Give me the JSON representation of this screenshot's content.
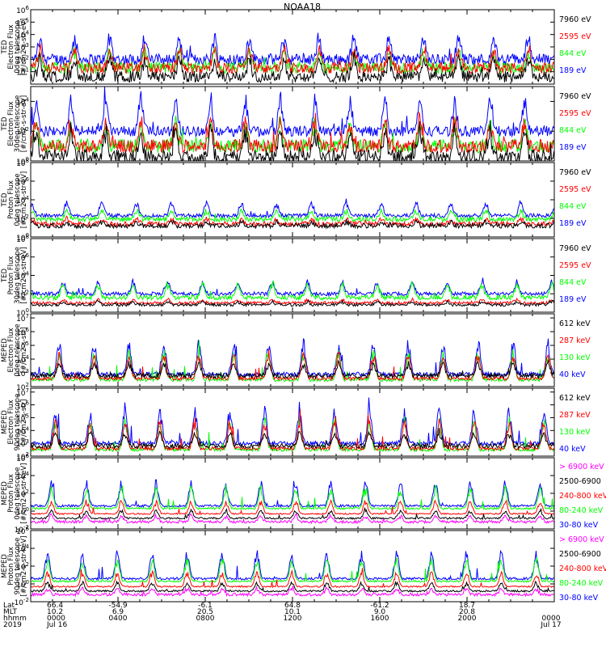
{
  "title": "NOAA18",
  "colors": {
    "black": "#000000",
    "red": "#ff0000",
    "green": "#00ff00",
    "blue": "#0000ff",
    "magenta": "#ff00ff"
  },
  "chart_data": [
    {
      "type": "line",
      "ylabel": [
        "TED",
        "Electron Flux",
        "0deg telescope",
        "[#/cm2-s-str-eV]"
      ],
      "yscale": "log",
      "ylim_exp": [
        0,
        6
      ],
      "ytick_labels": [
        "10^1",
        "10^2",
        "10^3",
        "10^4",
        "10^5",
        "10^6"
      ],
      "legend": [
        {
          "name": "7960 eV",
          "color": "#000000"
        },
        {
          "name": "2595 eV",
          "color": "#ff0000"
        },
        {
          "name": "844 eV",
          "color": "#00ff00"
        },
        {
          "name": "189 eV",
          "color": "#0000ff"
        }
      ],
      "series": [
        {
          "name": "189 eV",
          "color": "#0000ff",
          "base": 2.0,
          "amp": 2.0,
          "noise": 0.9
        },
        {
          "name": "844 eV",
          "color": "#00ff00",
          "base": 1.3,
          "amp": 1.6,
          "noise": 0.9
        },
        {
          "name": "2595 eV",
          "color": "#ff0000",
          "base": 1.3,
          "amp": 1.8,
          "noise": 0.9
        },
        {
          "name": "7960 eV",
          "color": "#000000",
          "base": 0.6,
          "amp": 1.7,
          "noise": 0.9
        }
      ]
    },
    {
      "type": "line",
      "ylabel": [
        "TED",
        "Electron Flux",
        "30deg telescope",
        "[#/cm2-s-str-eV]"
      ],
      "yscale": "log",
      "ylim_exp": [
        0,
        5
      ],
      "ytick_labels": [
        "10^0",
        "10^2",
        "10^4"
      ],
      "legend": [
        {
          "name": "7960 eV",
          "color": "#000000"
        },
        {
          "name": "2595 eV",
          "color": "#ff0000"
        },
        {
          "name": "844 eV",
          "color": "#00ff00"
        },
        {
          "name": "189 eV",
          "color": "#0000ff"
        }
      ],
      "series": [
        {
          "name": "189 eV",
          "color": "#0000ff",
          "base": 2.0,
          "amp": 2.4,
          "noise": 0.7
        },
        {
          "name": "844 eV",
          "color": "#00ff00",
          "base": 1.0,
          "amp": 1.8,
          "noise": 0.9
        },
        {
          "name": "2595 eV",
          "color": "#ff0000",
          "base": 1.0,
          "amp": 2.0,
          "noise": 0.9
        },
        {
          "name": "7960 eV",
          "color": "#000000",
          "base": 0.3,
          "amp": 2.0,
          "noise": 0.9
        }
      ]
    },
    {
      "type": "line",
      "ylabel": [
        "TED",
        "Proton Flux",
        "0deg telescope",
        "[#/cm2-s-str-eV]"
      ],
      "yscale": "log",
      "ylim_exp": [
        0,
        8
      ],
      "ytick_labels": [
        "10^0",
        "10^2",
        "10^4",
        "10^6",
        "10^8"
      ],
      "legend": [
        {
          "name": "7960 eV",
          "color": "#000000"
        },
        {
          "name": "2595 eV",
          "color": "#ff0000"
        },
        {
          "name": "844 eV",
          "color": "#00ff00"
        },
        {
          "name": "189 eV",
          "color": "#0000ff"
        }
      ],
      "series": [
        {
          "name": "189 eV",
          "color": "#0000ff",
          "base": 2.3,
          "amp": 1.7,
          "noise": 0.4
        },
        {
          "name": "844 eV",
          "color": "#00ff00",
          "base": 1.9,
          "amp": 1.1,
          "noise": 0.5
        },
        {
          "name": "2595 eV",
          "color": "#ff0000",
          "base": 1.4,
          "amp": 0.6,
          "noise": 0.5
        },
        {
          "name": "7960 eV",
          "color": "#000000",
          "base": 1.2,
          "amp": 0.5,
          "noise": 0.5
        }
      ]
    },
    {
      "type": "line",
      "ylabel": [
        "TED",
        "Proton Flux",
        "30deg telescope",
        "[#/cm2-s-str-eV]"
      ],
      "yscale": "log",
      "ylim_exp": [
        0,
        8
      ],
      "ytick_labels": [
        "10^0",
        "10^2",
        "10^4",
        "10^6",
        "10^8"
      ],
      "legend": [
        {
          "name": "7960 eV",
          "color": "#000000"
        },
        {
          "name": "2595 eV",
          "color": "#ff0000"
        },
        {
          "name": "844 eV",
          "color": "#00ff00"
        },
        {
          "name": "189 eV",
          "color": "#0000ff"
        }
      ],
      "series": [
        {
          "name": "189 eV",
          "color": "#0000ff",
          "base": 2.0,
          "amp": 1.5,
          "noise": 0.4
        },
        {
          "name": "844 eV",
          "color": "#00ff00",
          "base": 1.6,
          "amp": 1.7,
          "noise": 0.5
        },
        {
          "name": "2595 eV",
          "color": "#ff0000",
          "base": 1.0,
          "amp": 0.4,
          "noise": 0.3
        },
        {
          "name": "7960 eV",
          "color": "#000000",
          "base": 0.8,
          "amp": 0.4,
          "noise": 0.3
        }
      ]
    },
    {
      "type": "line",
      "ylabel": [
        "MEPED",
        "Electron Flux",
        "0deg telescope",
        "[#/cm2-s-str]"
      ],
      "yscale": "log",
      "ylim_exp": [
        2,
        7.3
      ],
      "ytick_labels": [
        "10^2",
        "10^3",
        "10^4",
        "10^5",
        "10^6",
        "10^7"
      ],
      "legend": [
        {
          "name": "612 keV",
          "color": "#000000"
        },
        {
          "name": "287 keV",
          "color": "#ff0000"
        },
        {
          "name": "130 keV",
          "color": "#00ff00"
        },
        {
          "name": "40 keV",
          "color": "#0000ff"
        }
      ],
      "series": [
        {
          "name": "40 keV",
          "color": "#0000ff",
          "base": 2.9,
          "amp": 2.6,
          "noise": 0.3
        },
        {
          "name": "130 keV",
          "color": "#00ff00",
          "base": 2.5,
          "amp": 2.3,
          "noise": 0.25
        },
        {
          "name": "287 keV",
          "color": "#ff0000",
          "base": 2.6,
          "amp": 2.0,
          "noise": 0.25
        },
        {
          "name": "612 keV",
          "color": "#000000",
          "base": 2.8,
          "amp": 1.0,
          "noise": 0.35
        }
      ]
    },
    {
      "type": "line",
      "ylabel": [
        "MEPED",
        "Electron Flux",
        "90deg telescope",
        "[#/cm2-s-str]"
      ],
      "yscale": "log",
      "ylim_exp": [
        2,
        7.3
      ],
      "ytick_labels": [
        "10^2",
        "10^3",
        "10^4",
        "10^5",
        "10^6",
        "10^7"
      ],
      "legend": [
        {
          "name": "612 keV",
          "color": "#000000"
        },
        {
          "name": "287 keV",
          "color": "#ff0000"
        },
        {
          "name": "130 keV",
          "color": "#00ff00"
        },
        {
          "name": "40 keV",
          "color": "#0000ff"
        }
      ],
      "series": [
        {
          "name": "40 keV",
          "color": "#0000ff",
          "base": 3.0,
          "amp": 2.9,
          "noise": 0.3
        },
        {
          "name": "130 keV",
          "color": "#00ff00",
          "base": 2.5,
          "amp": 2.6,
          "noise": 0.25
        },
        {
          "name": "287 keV",
          "color": "#ff0000",
          "base": 2.6,
          "amp": 2.4,
          "noise": 0.25
        },
        {
          "name": "612 keV",
          "color": "#000000",
          "base": 2.8,
          "amp": 1.2,
          "noise": 0.35
        }
      ]
    },
    {
      "type": "line",
      "ylabel": [
        "MEPED",
        "Proton Flux",
        "0deg telescope",
        "[#/cm2-s-str-keV]"
      ],
      "yscale": "log",
      "ylim_exp": [
        -2,
        6
      ],
      "ytick_labels": [
        "10^-2",
        "10^0",
        "10^2",
        "10^4",
        "10^6"
      ],
      "legend": [
        {
          "name": "> 6900 keV",
          "color": "#ff00ff"
        },
        {
          "name": "2500-6900",
          "color": "#000000"
        },
        {
          "name": "240-800 keV",
          "color": "#ff0000"
        },
        {
          "name": "80-240 keV",
          "color": "#00ff00"
        },
        {
          "name": "30-80 keV",
          "color": "#0000ff"
        }
      ],
      "series": [
        {
          "name": "30-80 keV",
          "color": "#0000ff",
          "base": 0.6,
          "amp": 3.0,
          "noise": 0.25
        },
        {
          "name": "80-240 keV",
          "color": "#00ff00",
          "base": 0.3,
          "amp": 2.6,
          "noise": 0.2
        },
        {
          "name": "240-800 keV",
          "color": "#ff0000",
          "base": -0.3,
          "amp": 1.6,
          "noise": 0.15
        },
        {
          "name": "2500-6900",
          "color": "#000000",
          "base": -0.8,
          "amp": 1.0,
          "noise": 0.2
        },
        {
          "name": "> 6900 keV",
          "color": "#ff00ff",
          "base": -1.2,
          "amp": 0.8,
          "noise": 0.3
        }
      ]
    },
    {
      "type": "line",
      "ylabel": [
        "MEPED",
        "Proton Flux",
        "90deg telescope",
        "[#/cm2-s-str-keV]"
      ],
      "yscale": "log",
      "ylim_exp": [
        -2,
        6
      ],
      "ytick_labels": [
        "10^-2",
        "10^0",
        "10^2",
        "10^4",
        "10^6"
      ],
      "legend": [
        {
          "name": "> 6900 keV",
          "color": "#ff00ff"
        },
        {
          "name": "2500-6900",
          "color": "#000000"
        },
        {
          "name": "240-800 keV",
          "color": "#ff0000"
        },
        {
          "name": "80-240 keV",
          "color": "#00ff00"
        },
        {
          "name": "30-80 keV",
          "color": "#0000ff"
        }
      ],
      "series": [
        {
          "name": "30-80 keV",
          "color": "#0000ff",
          "base": 0.6,
          "amp": 3.3,
          "noise": 0.25
        },
        {
          "name": "80-240 keV",
          "color": "#00ff00",
          "base": 0.3,
          "amp": 2.8,
          "noise": 0.2
        },
        {
          "name": "240-800 keV",
          "color": "#ff0000",
          "base": -0.3,
          "amp": 1.8,
          "noise": 0.15
        },
        {
          "name": "2500-6900",
          "color": "#000000",
          "base": -0.8,
          "amp": 1.1,
          "noise": 0.2
        },
        {
          "name": "> 6900 keV",
          "color": "#ff00ff",
          "base": -1.2,
          "amp": 0.8,
          "noise": 0.3
        }
      ]
    }
  ],
  "x_axis": {
    "row_labels": [
      "Lat",
      "MLT",
      "hhmm",
      "2019"
    ],
    "columns": [
      [
        "66.4",
        "10.2",
        "0000",
        "Jul 16"
      ],
      [
        "-54.9",
        "6.9",
        "0400",
        ""
      ],
      [
        "-6.1",
        "20.5",
        "0800",
        ""
      ],
      [
        "64.8",
        "10.1",
        "1200",
        ""
      ],
      [
        "-61.2",
        "9.0",
        "1600",
        ""
      ],
      [
        "18.7",
        "20.8",
        "2000",
        ""
      ],
      [
        "",
        "",
        "0000",
        "Jul 17"
      ]
    ]
  }
}
